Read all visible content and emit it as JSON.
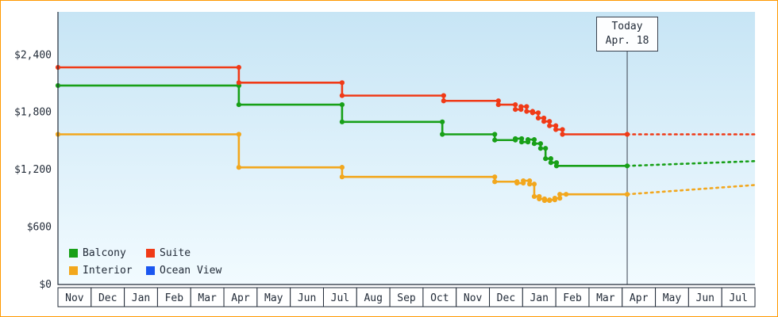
{
  "chart_data": {
    "type": "line",
    "step": true,
    "legend_position": "bottom-left-inside",
    "grid": false,
    "x_months": [
      "Nov",
      "Dec",
      "Jan",
      "Feb",
      "Mar",
      "Apr",
      "May",
      "Jun",
      "Jul",
      "Aug",
      "Sep",
      "Oct",
      "Nov",
      "Dec",
      "Jan",
      "Feb",
      "Mar",
      "Apr",
      "May",
      "Jun",
      "Jul"
    ],
    "y_ticks": [
      {
        "label": "$0",
        "value": 0
      },
      {
        "label": "$600",
        "value": 600
      },
      {
        "label": "$1,200",
        "value": 1200
      },
      {
        "label": "$1,800",
        "value": 1800
      },
      {
        "label": "$2,400",
        "value": 2400
      }
    ],
    "xlim": [
      0,
      21
    ],
    "ylim": [
      0,
      2850
    ],
    "today": {
      "line1": "Today",
      "line2": "Apr. 18",
      "x": 17.15
    },
    "colors": {
      "axis": "#222b38",
      "today_line": "#39414e",
      "plot_top": "#c7e5f5",
      "plot_bottom": "#f2fbff",
      "page_border": "#ff9900",
      "month_cell_bg": "#ffffff",
      "today_box_bg": "#fdfeff"
    },
    "series": [
      {
        "name": "Balcony",
        "color": "#18a018",
        "points": [
          [
            0,
            2080
          ],
          [
            5.45,
            2080
          ],
          [
            5.45,
            1880
          ],
          [
            8.56,
            1880
          ],
          [
            8.56,
            1700
          ],
          [
            11.58,
            1700
          ],
          [
            11.58,
            1570
          ],
          [
            13.16,
            1570
          ],
          [
            13.16,
            1510
          ],
          [
            13.78,
            1510
          ],
          [
            13.78,
            1525
          ],
          [
            13.97,
            1525
          ],
          [
            13.97,
            1490
          ],
          [
            14.16,
            1490
          ],
          [
            14.16,
            1515
          ],
          [
            14.35,
            1515
          ],
          [
            14.35,
            1473
          ],
          [
            14.54,
            1473
          ],
          [
            14.54,
            1423
          ],
          [
            14.69,
            1423
          ],
          [
            14.69,
            1316
          ],
          [
            14.85,
            1316
          ],
          [
            14.85,
            1274
          ],
          [
            15.02,
            1274
          ],
          [
            15.02,
            1240
          ],
          [
            17.15,
            1240
          ]
        ],
        "forecast": [
          [
            17.15,
            1240
          ],
          [
            21,
            1290
          ]
        ]
      },
      {
        "name": "Suite",
        "color": "#f03a17",
        "points": [
          [
            0,
            2270
          ],
          [
            5.45,
            2270
          ],
          [
            5.45,
            2110
          ],
          [
            8.56,
            2110
          ],
          [
            8.56,
            1975
          ],
          [
            11.62,
            1975
          ],
          [
            11.62,
            1920
          ],
          [
            13.27,
            1920
          ],
          [
            13.27,
            1880
          ],
          [
            13.78,
            1880
          ],
          [
            13.78,
            1830
          ],
          [
            13.95,
            1830
          ],
          [
            13.95,
            1860
          ],
          [
            14.12,
            1860
          ],
          [
            14.12,
            1810
          ],
          [
            14.3,
            1810
          ],
          [
            14.3,
            1795
          ],
          [
            14.47,
            1795
          ],
          [
            14.47,
            1740
          ],
          [
            14.64,
            1740
          ],
          [
            14.64,
            1705
          ],
          [
            14.81,
            1705
          ],
          [
            14.81,
            1660
          ],
          [
            15.0,
            1660
          ],
          [
            15.0,
            1620
          ],
          [
            15.2,
            1620
          ],
          [
            15.2,
            1570
          ],
          [
            17.15,
            1570
          ]
        ],
        "forecast": [
          [
            17.15,
            1570
          ],
          [
            21,
            1570
          ]
        ]
      },
      {
        "name": "Interior",
        "color": "#f2a71d",
        "points": [
          [
            0,
            1570
          ],
          [
            5.45,
            1570
          ],
          [
            5.45,
            1225
          ],
          [
            8.56,
            1225
          ],
          [
            8.56,
            1125
          ],
          [
            13.16,
            1125
          ],
          [
            13.16,
            1075
          ],
          [
            13.83,
            1075
          ],
          [
            13.83,
            1060
          ],
          [
            14.02,
            1060
          ],
          [
            14.02,
            1085
          ],
          [
            14.21,
            1085
          ],
          [
            14.21,
            1050
          ],
          [
            14.35,
            1050
          ],
          [
            14.35,
            920
          ],
          [
            14.5,
            920
          ],
          [
            14.5,
            895
          ],
          [
            14.66,
            895
          ],
          [
            14.66,
            878
          ],
          [
            14.81,
            878
          ],
          [
            14.81,
            885
          ],
          [
            14.97,
            885
          ],
          [
            14.97,
            902
          ],
          [
            15.12,
            902
          ],
          [
            15.12,
            943
          ],
          [
            15.31,
            943
          ],
          [
            17.15,
            943
          ]
        ],
        "forecast": [
          [
            17.15,
            943
          ],
          [
            21,
            1040
          ]
        ]
      },
      {
        "name": "Ocean View",
        "color": "#1a56f0",
        "points": [],
        "forecast": []
      }
    ]
  }
}
